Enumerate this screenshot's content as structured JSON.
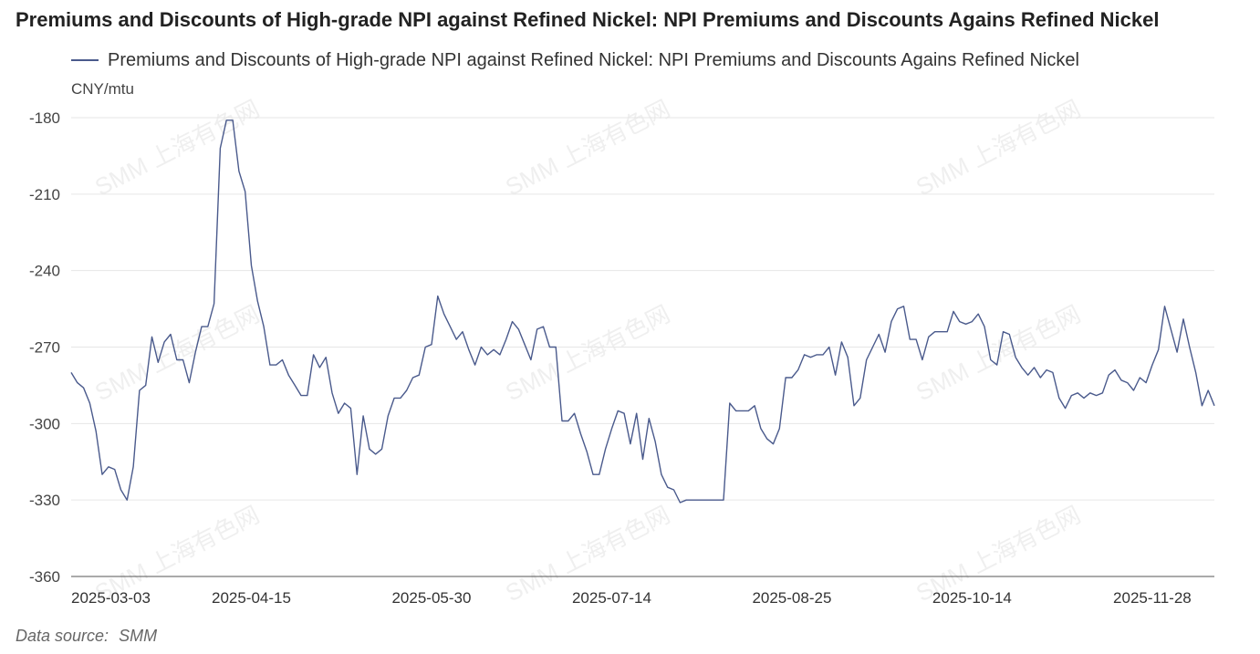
{
  "title": "Premiums and Discounts of High-grade NPI against Refined Nickel: NPI Premiums and Discounts Agains Refined Nickel",
  "legend_label": "Premiums and Discounts of High-grade NPI against Refined Nickel: NPI Premiums and Discounts Agains Refined Nickel",
  "unit": "CNY/mtu",
  "source": {
    "label": "Data source:",
    "value": "SMM"
  },
  "watermark": "SMM 上海有色网",
  "colors": {
    "series": "#4a5a8c",
    "grid": "#e6e6e6",
    "axis": "#555555"
  },
  "chart_data": {
    "type": "line",
    "ylabel": "CNY/mtu",
    "ylim": [
      -360,
      -180
    ],
    "yticks": [
      -180,
      -210,
      -240,
      -270,
      -300,
      -330,
      -360
    ],
    "xtick_labels": [
      "2025-03-03",
      "2025-04-15",
      "2025-05-30",
      "2025-07-14",
      "2025-08-25",
      "2025-10-14",
      "2025-11-28"
    ],
    "xtick_positions": [
      0,
      29,
      58,
      87,
      116,
      145,
      174
    ],
    "grid": "horizontal",
    "legend_position": "top-left",
    "series": [
      {
        "name": "Premiums and Discounts of High-grade NPI against Refined Nickel: NPI Premiums and Discounts Agains Refined Nickel",
        "values": [
          -280,
          -284,
          -286,
          -292,
          -303,
          -320,
          -317,
          -318,
          -326,
          -330,
          -317,
          -287,
          -285,
          -266,
          -276,
          -268,
          -265,
          -275,
          -275,
          -284,
          -272,
          -262,
          -262,
          -253,
          -192,
          -181,
          -181,
          -201,
          -209,
          -238,
          -252,
          -262,
          -277,
          -277,
          -275,
          -281,
          -285,
          -289,
          -289,
          -273,
          -278,
          -274,
          -288,
          -296,
          -292,
          -294,
          -320,
          -297,
          -310,
          -312,
          -310,
          -297,
          -290,
          -290,
          -287,
          -282,
          -281,
          -270,
          -269,
          -250,
          -257,
          -262,
          -267,
          -264,
          -271,
          -277,
          -270,
          -273,
          -271,
          -273,
          -267,
          -260,
          -263,
          -269,
          -275,
          -263,
          -262,
          -270,
          -270,
          -299,
          -299,
          -296,
          -304,
          -311,
          -320,
          -320,
          -310,
          -302,
          -295,
          -296,
          -308,
          -296,
          -314,
          -298,
          -307,
          -320,
          -325,
          -326,
          -331,
          -330,
          -330,
          -330,
          -330,
          -330,
          -330,
          -330,
          -292,
          -295,
          -295,
          -295,
          -293,
          -302,
          -306,
          -308,
          -302,
          -282,
          -282,
          -279,
          -273,
          -274,
          -273,
          -273,
          -270,
          -281,
          -268,
          -274,
          -293,
          -290,
          -275,
          -270,
          -265,
          -272,
          -260,
          -255,
          -254,
          -267,
          -267,
          -275,
          -266,
          -264,
          -264,
          -264,
          -256,
          -260,
          -261,
          -260,
          -257,
          -262,
          -275,
          -277,
          -264,
          -265,
          -274,
          -278,
          -281,
          -278,
          -282,
          -279,
          -280,
          -290,
          -294,
          -289,
          -288,
          -290,
          -288,
          -289,
          -288,
          -281,
          -279,
          -283,
          -284,
          -287,
          -282,
          -284,
          -277,
          -271,
          -254,
          -263,
          -272,
          -259,
          -270,
          -280,
          -293,
          -287,
          -293
        ]
      }
    ]
  }
}
